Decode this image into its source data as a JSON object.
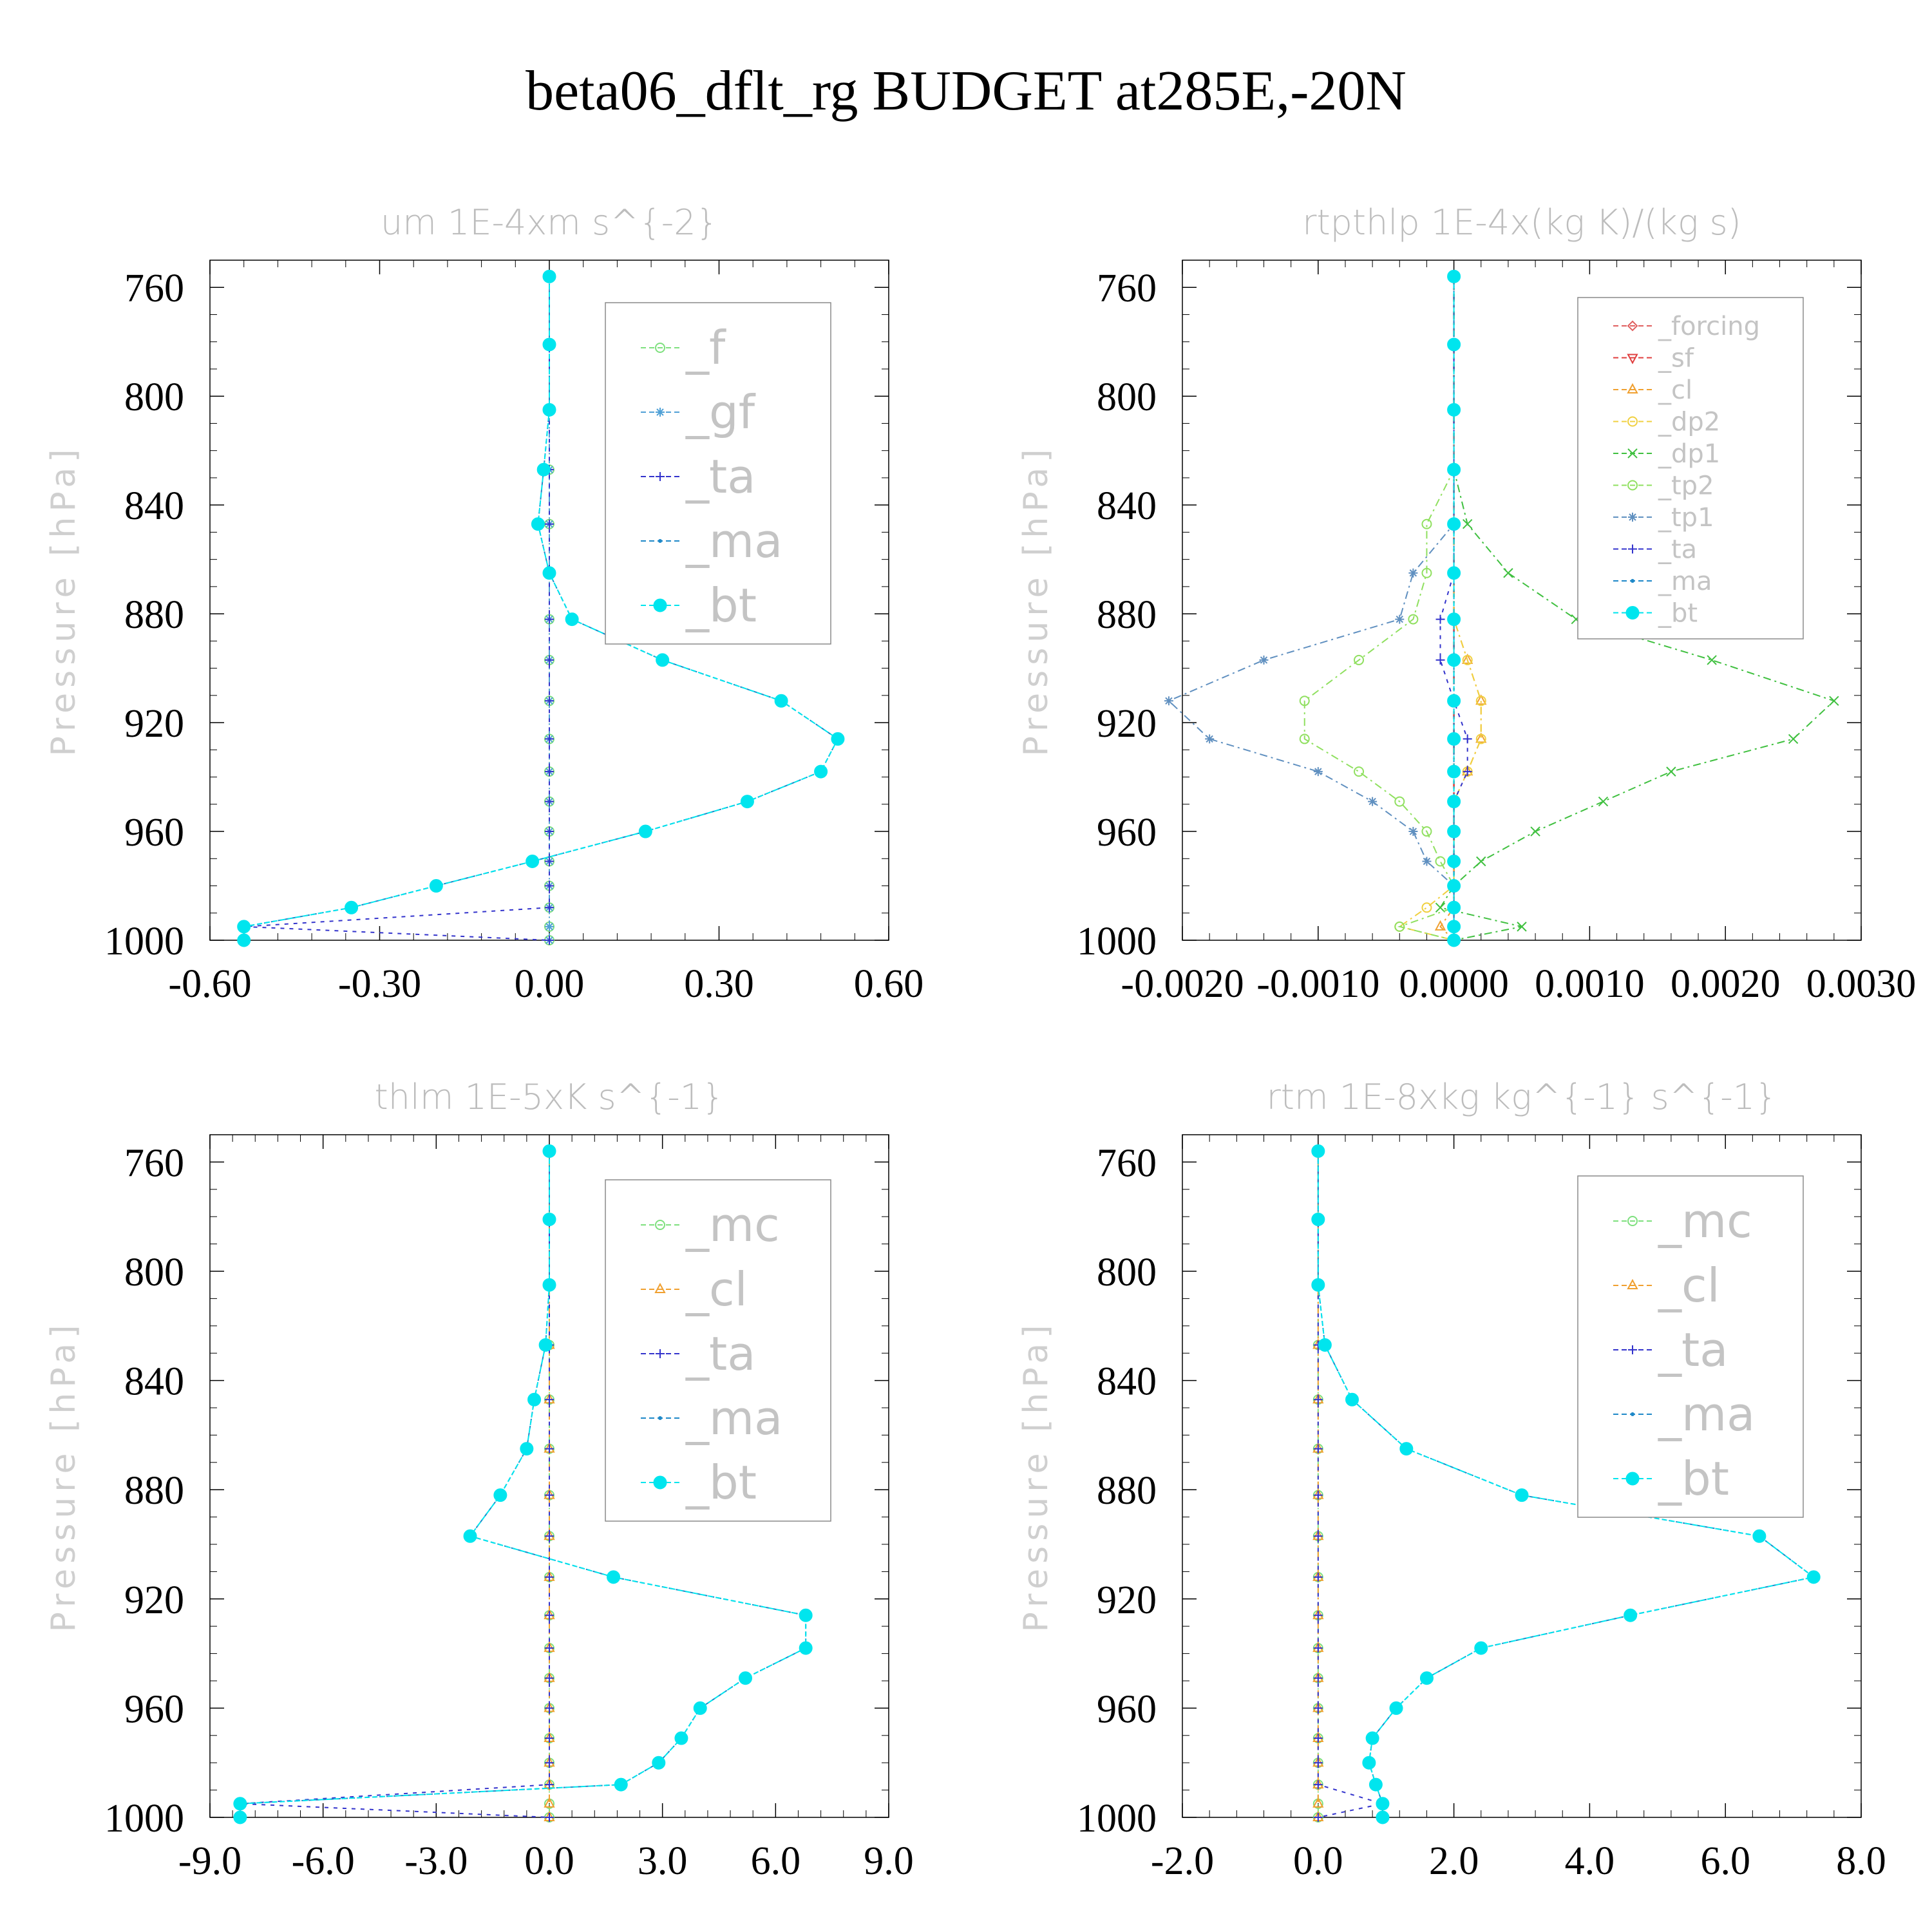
{
  "figure_title": "beta06_dflt_rg  BUDGET at285E,-20N",
  "colors": {
    "f": "#7ee07e",
    "gf": "#4fa0d6",
    "ta": "#3333cc",
    "ma": "#1e88c8",
    "bt": "#00e5ee",
    "forcing": "#e06060",
    "sf": "#e04040",
    "cl": "#f0a030",
    "dp2": "#f0d040",
    "dp1": "#40c040",
    "tp2": "#90e060",
    "tp1": "#6090c0",
    "mc": "#7ee07e",
    "axis": "#000000"
  },
  "chart_data": [
    {
      "id": "um",
      "type": "line",
      "title": "um   1E-4xm s^{-2}",
      "ylabel": "Pressure [hPa]",
      "xlim": [
        -0.6,
        0.6
      ],
      "ylim": [
        1000,
        750
      ],
      "y_inverted": true,
      "xticks": [
        "-0.60",
        "-0.30",
        "0.00",
        "0.30",
        "0.60"
      ],
      "yticks": [
        "760",
        "800",
        "840",
        "880",
        "920",
        "960",
        "1000"
      ],
      "legend": [
        "_f",
        "_gf",
        "_ta",
        "_ma",
        "_bt"
      ],
      "legend_position": "upper-right",
      "pressure": [
        756,
        781,
        805,
        827,
        847,
        865,
        882,
        897,
        912,
        926,
        938,
        949,
        960,
        971,
        980,
        988,
        995,
        1000
      ],
      "series": [
        {
          "name": "_f",
          "key": "f",
          "x": [
            0,
            0,
            0,
            0,
            0,
            0,
            0,
            0,
            0,
            0,
            0,
            0,
            0,
            0,
            0,
            0,
            0,
            0
          ]
        },
        {
          "name": "_gf",
          "key": "gf",
          "x": [
            0,
            0,
            0,
            0,
            0,
            0,
            0,
            0,
            0,
            0,
            0,
            0,
            0,
            0,
            0,
            0,
            0,
            0
          ]
        },
        {
          "name": "_ta",
          "key": "ta",
          "x": [
            0,
            0,
            0,
            0,
            0,
            0,
            0,
            0,
            0,
            0,
            0,
            0,
            0,
            0,
            0,
            0,
            -0.54,
            0
          ]
        },
        {
          "name": "_ma",
          "key": "ma",
          "x": [
            0.0,
            0.0,
            0.0,
            -0.01,
            -0.02,
            0.0,
            0.04,
            0.2,
            0.41,
            0.51,
            0.48,
            0.35,
            0.17,
            -0.03,
            -0.2,
            -0.35,
            -0.54,
            -0.54
          ]
        },
        {
          "name": "_bt",
          "key": "bt",
          "x": [
            0.0,
            0.0,
            0.0,
            -0.01,
            -0.02,
            0.0,
            0.04,
            0.2,
            0.41,
            0.51,
            0.48,
            0.35,
            0.17,
            -0.03,
            -0.2,
            -0.35,
            -0.54,
            -0.54
          ]
        }
      ]
    },
    {
      "id": "rtpthlp",
      "type": "line",
      "title": "rtpthlp   1E-4x(kg K)/(kg s)",
      "ylabel": "Pressure [hPa]",
      "xlim": [
        -0.002,
        0.003
      ],
      "ylim": [
        1000,
        750
      ],
      "y_inverted": true,
      "xticks": [
        "-0.0020",
        "-0.0010",
        "0.0000",
        "0.0010",
        "0.0020",
        "0.0030"
      ],
      "yticks": [
        "760",
        "800",
        "840",
        "880",
        "920",
        "960",
        "1000"
      ],
      "legend": [
        "_forcing",
        "_sf",
        "_cl",
        "_dp2",
        "_dp1",
        "_tp2",
        "_tp1",
        "_ta",
        "_ma",
        "_bt"
      ],
      "legend_position": "upper-right",
      "pressure": [
        756,
        781,
        805,
        827,
        847,
        865,
        882,
        897,
        912,
        926,
        938,
        949,
        960,
        971,
        980,
        988,
        995,
        1000
      ],
      "series": [
        {
          "name": "_forcing",
          "key": "forcing",
          "x": [
            0,
            0,
            0,
            0,
            0,
            0,
            0,
            0,
            0,
            0,
            0,
            0,
            0,
            0,
            0,
            0,
            0,
            0
          ]
        },
        {
          "name": "_sf",
          "key": "sf",
          "x": [
            0,
            0,
            0,
            0,
            0,
            0,
            0,
            0,
            0,
            0,
            0,
            0,
            0,
            0,
            0,
            0,
            0,
            0
          ]
        },
        {
          "name": "_cl",
          "key": "cl",
          "x": [
            0,
            0,
            0,
            0,
            0,
            0,
            0,
            0.0001,
            0.0002,
            0.0002,
            0.0001,
            0,
            0,
            0,
            0,
            0,
            -0.0001,
            0
          ]
        },
        {
          "name": "_dp2",
          "key": "dp2",
          "x": [
            0,
            0,
            0,
            0,
            0,
            0,
            0,
            0.0001,
            0.0002,
            0.0002,
            0.0001,
            0,
            0,
            0,
            0,
            -0.0002,
            -0.0004,
            0
          ]
        },
        {
          "name": "_dp1",
          "key": "dp1",
          "x": [
            0,
            0,
            0,
            0,
            0.0001,
            0.0004,
            0.0009,
            0.0019,
            0.0028,
            0.0025,
            0.0016,
            0.0011,
            0.0006,
            0.0002,
            0,
            -0.0001,
            0.0005,
            0
          ]
        },
        {
          "name": "_tp2",
          "key": "tp2",
          "x": [
            0,
            0,
            0,
            0,
            -0.0002,
            -0.0002,
            -0.0003,
            -0.0007,
            -0.0011,
            -0.0011,
            -0.0007,
            -0.0004,
            -0.0002,
            -0.0001,
            0,
            0,
            -0.0004,
            0
          ]
        },
        {
          "name": "_tp1",
          "key": "tp1",
          "x": [
            0,
            0,
            0,
            0,
            0,
            -0.0003,
            -0.0004,
            -0.0014,
            -0.0021,
            -0.0018,
            -0.001,
            -0.0006,
            -0.0003,
            -0.0002,
            0,
            0,
            0,
            0
          ]
        },
        {
          "name": "_ta",
          "key": "ta",
          "x": [
            0,
            0,
            0,
            0,
            0,
            0,
            -0.0001,
            -0.0001,
            0,
            0.0001,
            0.0001,
            0,
            0,
            0,
            0,
            0,
            0,
            0
          ]
        },
        {
          "name": "_ma",
          "key": "ma",
          "x": [
            0,
            0,
            0,
            0,
            0,
            0,
            0,
            0,
            0,
            0,
            0,
            0,
            0,
            0,
            0,
            0,
            0,
            0
          ]
        },
        {
          "name": "_bt",
          "key": "bt",
          "x": [
            0,
            0,
            0,
            0,
            0,
            0,
            0,
            0,
            0,
            0,
            0,
            0,
            0,
            0,
            0,
            0,
            0,
            0
          ]
        }
      ]
    },
    {
      "id": "thlm",
      "type": "line",
      "title": "thlm   1E-5xK s^{-1}",
      "ylabel": "Pressure [hPa]",
      "xlim": [
        -9,
        9
      ],
      "ylim": [
        1000,
        750
      ],
      "y_inverted": true,
      "xticks": [
        "-9.0",
        "-6.0",
        "-3.0",
        "0.0",
        "3.0",
        "6.0",
        "9.0"
      ],
      "yticks": [
        "760",
        "800",
        "840",
        "880",
        "920",
        "960",
        "1000"
      ],
      "legend": [
        "_mc",
        "_cl",
        "_ta",
        "_ma",
        "_bt"
      ],
      "legend_position": "upper-right",
      "pressure": [
        756,
        781,
        805,
        827,
        847,
        865,
        882,
        897,
        912,
        926,
        938,
        949,
        960,
        971,
        980,
        988,
        995,
        1000
      ],
      "series": [
        {
          "name": "_mc",
          "key": "mc",
          "x": [
            0,
            0,
            0,
            0,
            0,
            0,
            0,
            0,
            0,
            0,
            0,
            0,
            0,
            0,
            0,
            0,
            0,
            0
          ]
        },
        {
          "name": "_cl",
          "key": "cl",
          "x": [
            0,
            0,
            0,
            0,
            0,
            0,
            0,
            0,
            0,
            0,
            0,
            0,
            0,
            0,
            0,
            0,
            0,
            0
          ]
        },
        {
          "name": "_ta",
          "key": "ta",
          "x": [
            0,
            0,
            0,
            0,
            0,
            0,
            0,
            0,
            0,
            0,
            0,
            0,
            0,
            0,
            0,
            0,
            -8.2,
            0
          ]
        },
        {
          "name": "_ma",
          "key": "ma",
          "x": [
            0.0,
            0.0,
            0.0,
            -0.1,
            -0.4,
            -0.6,
            -1.3,
            -2.1,
            1.7,
            6.8,
            6.8,
            5.2,
            4.0,
            3.5,
            2.9,
            1.9,
            -8.2,
            -8.2
          ]
        },
        {
          "name": "_bt",
          "key": "bt",
          "x": [
            0.0,
            0.0,
            0.0,
            -0.1,
            -0.4,
            -0.6,
            -1.3,
            -2.1,
            1.7,
            6.8,
            6.8,
            5.2,
            4.0,
            3.5,
            2.9,
            1.9,
            -8.2,
            -8.2
          ]
        }
      ]
    },
    {
      "id": "rtm",
      "type": "line",
      "title": "rtm   1E-8xkg kg^{-1} s^{-1}",
      "ylabel": "Pressure [hPa]",
      "xlim": [
        -2,
        8
      ],
      "ylim": [
        1000,
        750
      ],
      "y_inverted": true,
      "xticks": [
        "-2.0",
        "0.0",
        "2.0",
        "4.0",
        "6.0",
        "8.0"
      ],
      "yticks": [
        "760",
        "800",
        "840",
        "880",
        "920",
        "960",
        "1000"
      ],
      "legend": [
        "_mc",
        "_cl",
        "_ta",
        "_ma",
        "_bt"
      ],
      "legend_position": "upper-right",
      "pressure": [
        756,
        781,
        805,
        827,
        847,
        865,
        882,
        897,
        912,
        926,
        938,
        949,
        960,
        971,
        980,
        988,
        995,
        1000
      ],
      "series": [
        {
          "name": "_mc",
          "key": "mc",
          "x": [
            0,
            0,
            0,
            0,
            0,
            0,
            0,
            0,
            0,
            0,
            0,
            0,
            0,
            0,
            0,
            0,
            0,
            0
          ]
        },
        {
          "name": "_cl",
          "key": "cl",
          "x": [
            0,
            0,
            0,
            0,
            0,
            0,
            0,
            0,
            0,
            0,
            0,
            0,
            0,
            0,
            0,
            0,
            0,
            0
          ]
        },
        {
          "name": "_ta",
          "key": "ta",
          "x": [
            0,
            0,
            0,
            0,
            0,
            0,
            0,
            0,
            0,
            0,
            0,
            0,
            0,
            0,
            0,
            0,
            0.95,
            0
          ]
        },
        {
          "name": "_ma",
          "key": "ma",
          "x": [
            0.0,
            0.0,
            0.0,
            0.1,
            0.5,
            1.3,
            3.0,
            6.5,
            7.3,
            4.6,
            2.4,
            1.6,
            1.15,
            0.8,
            0.75,
            0.85,
            0.95,
            0.95
          ]
        },
        {
          "name": "_bt",
          "key": "bt",
          "x": [
            0.0,
            0.0,
            0.0,
            0.1,
            0.5,
            1.3,
            3.0,
            6.5,
            7.3,
            4.6,
            2.4,
            1.6,
            1.15,
            0.8,
            0.75,
            0.85,
            0.95,
            0.95
          ]
        }
      ]
    }
  ]
}
